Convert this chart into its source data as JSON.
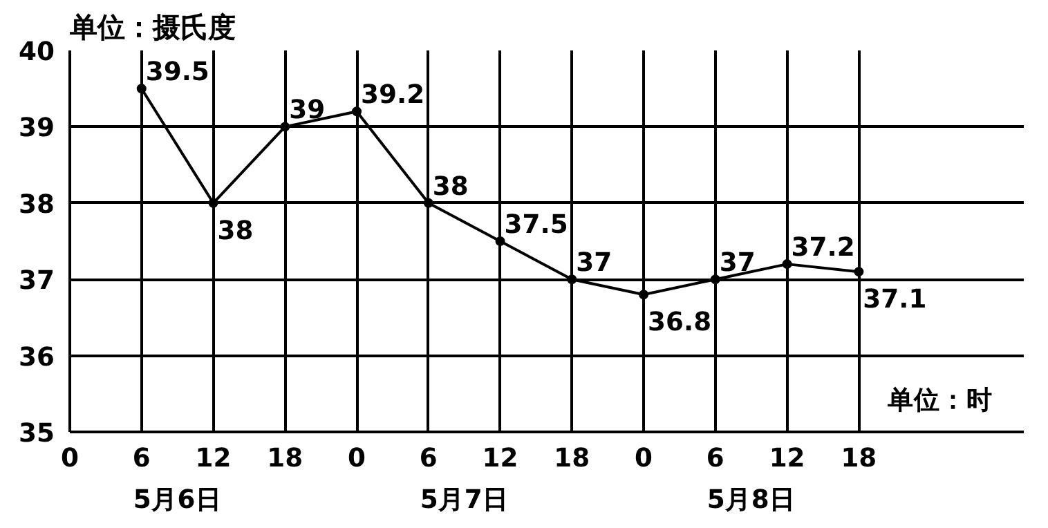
{
  "chart_data": {
    "type": "line",
    "ylabel": "单位：摄氏度",
    "xlabel": "单位：时",
    "categories": [
      "0",
      "6",
      "12",
      "18",
      "0",
      "6",
      "12",
      "18",
      "0",
      "6",
      "12",
      "18"
    ],
    "series": [
      {
        "color": "#000000",
        "values": [
          null,
          39.5,
          38,
          39,
          39.2,
          38,
          37.5,
          37,
          36.8,
          37,
          37.2,
          37.1
        ]
      }
    ],
    "ylim": [
      35,
      40
    ],
    "yticks": [
      35,
      36,
      37,
      38,
      39,
      40
    ],
    "grid": true,
    "marker": "circle",
    "line_style": "solid",
    "data_labels": true,
    "annotations": [
      "5月6日",
      "5月7日",
      "5月8日"
    ]
  }
}
